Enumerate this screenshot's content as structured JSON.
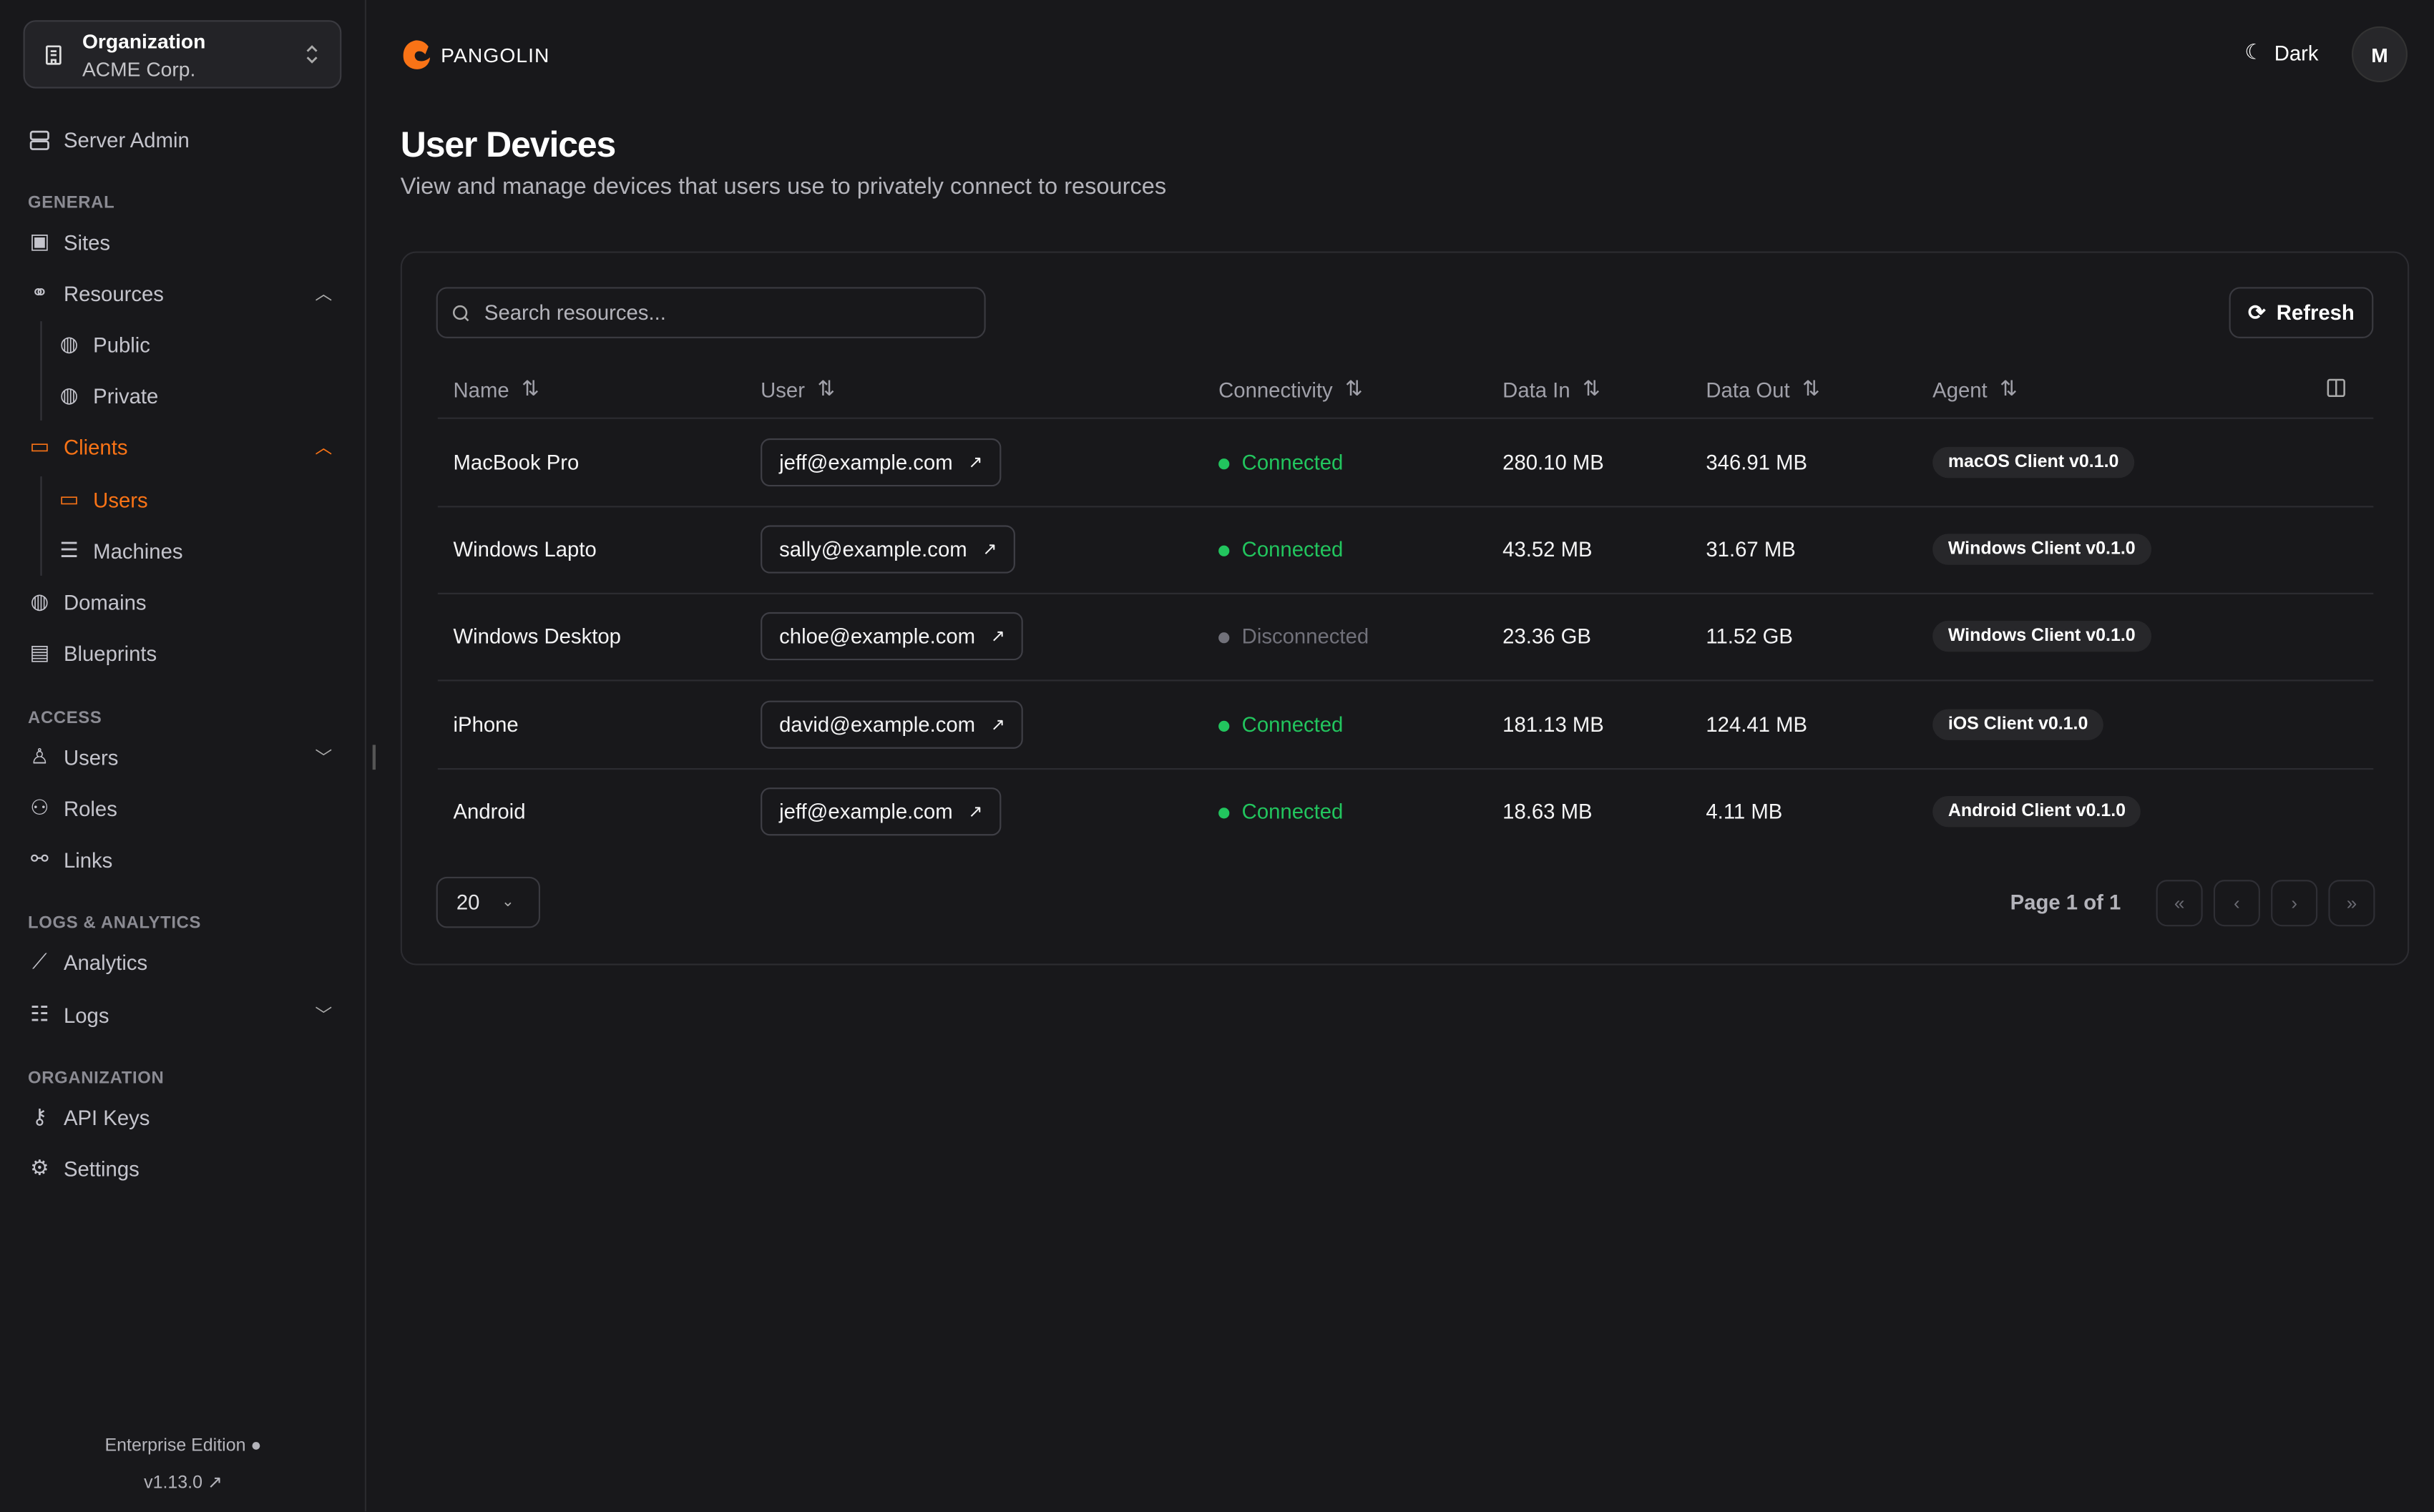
{
  "org": {
    "label": "Organization",
    "name": "ACME Corp."
  },
  "brand": {
    "name": "PANGOLIN",
    "accent": "#f97316"
  },
  "sidebar": {
    "server_admin": "Server Admin",
    "sections": [
      "GENERAL",
      "ACCESS",
      "LOGS & ANALYTICS",
      "ORGANIZATION"
    ],
    "items": [
      {
        "label": "Sites",
        "icon": "sites-icon"
      },
      {
        "label": "Resources",
        "icon": "resources-icon",
        "expanded": true
      },
      {
        "label": "Public",
        "icon": "globe-icon"
      },
      {
        "label": "Private",
        "icon": "globe-lock-icon"
      },
      {
        "label": "Clients",
        "icon": "monitor-icon",
        "expanded": true,
        "active": true
      },
      {
        "label": "Users",
        "icon": "laptop-icon",
        "active": true
      },
      {
        "label": "Machines",
        "icon": "server-icon"
      },
      {
        "label": "Domains",
        "icon": "globe-icon"
      },
      {
        "label": "Blueprints",
        "icon": "document-icon"
      },
      {
        "label": "Users",
        "icon": "user-icon",
        "expanded": false
      },
      {
        "label": "Roles",
        "icon": "users-icon"
      },
      {
        "label": "Links",
        "icon": "link-icon"
      },
      {
        "label": "Analytics",
        "icon": "chart-icon"
      },
      {
        "label": "Logs",
        "icon": "list-icon",
        "expanded": false
      },
      {
        "label": "API Keys",
        "icon": "key-icon"
      },
      {
        "label": "Settings",
        "icon": "gear-icon"
      }
    ],
    "edition": "Enterprise Edition",
    "version": "v1.13.0"
  },
  "header": {
    "theme_label": "Dark",
    "avatar": "M"
  },
  "page": {
    "title": "User Devices",
    "subtitle": "View and manage devices that users use to privately connect to resources"
  },
  "toolbar": {
    "search_placeholder": "Search resources...",
    "refresh": "Refresh"
  },
  "table": {
    "columns": [
      "Name",
      "User",
      "Connectivity",
      "Data In",
      "Data Out",
      "Agent"
    ],
    "rows": [
      {
        "name": "MacBook Pro",
        "user": "jeff@example.com",
        "status": "Connected",
        "in": "280.10 MB",
        "out": "346.91 MB",
        "agent": "macOS Client v0.1.0"
      },
      {
        "name": "Windows Lapto",
        "user": "sally@example.com",
        "status": "Connected",
        "in": "43.52 MB",
        "out": "31.67 MB",
        "agent": "Windows Client v0.1.0"
      },
      {
        "name": "Windows Desktop",
        "user": "chloe@example.com",
        "status": "Disconnected",
        "in": "23.36 GB",
        "out": "11.52 GB",
        "agent": "Windows Client v0.1.0"
      },
      {
        "name": "iPhone",
        "user": "david@example.com",
        "status": "Connected",
        "in": "181.13 MB",
        "out": "124.41 MB",
        "agent": "iOS Client v0.1.0"
      },
      {
        "name": "Android",
        "user": "jeff@example.com",
        "status": "Connected",
        "in": "18.63 MB",
        "out": "4.11 MB",
        "agent": "Android Client v0.1.0"
      }
    ],
    "status_colors": {
      "Connected": "#22c55e",
      "Disconnected": "#71717a"
    }
  },
  "pagination": {
    "page_size": "20",
    "page_label": "Page 1 of 1"
  }
}
